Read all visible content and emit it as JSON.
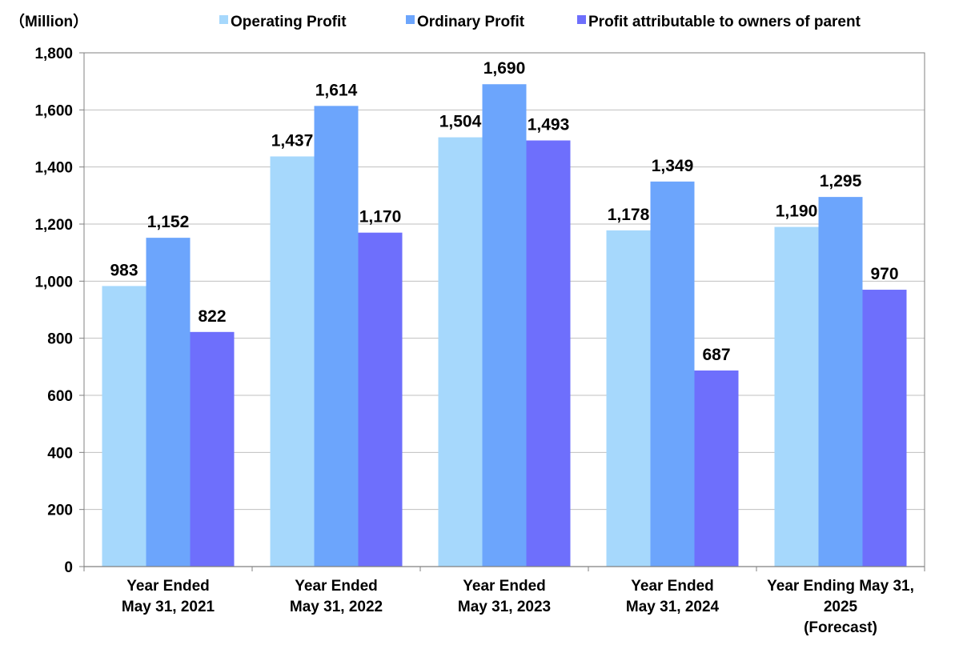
{
  "chart_data": {
    "type": "bar",
    "unit_label": "（Million）",
    "categories": [
      [
        "Year Ended",
        "May 31, 2021"
      ],
      [
        "Year Ended",
        "May 31, 2022"
      ],
      [
        "Year Ended",
        "May 31, 2023"
      ],
      [
        "Year Ended",
        "May 31, 2024"
      ],
      [
        "Year Ending May 31,",
        "2025",
        "(Forecast)"
      ]
    ],
    "series": [
      {
        "name": "Operating Profit",
        "color": "#a6d8fc",
        "values": [
          983,
          1437,
          1504,
          1178,
          1190
        ],
        "labels": [
          "983",
          "1,437",
          "1,504",
          "1,178",
          "1,190"
        ]
      },
      {
        "name": "Ordinary Profit",
        "color": "#6ca5fc",
        "values": [
          1152,
          1614,
          1690,
          1349,
          1295
        ],
        "labels": [
          "1,152",
          "1,614",
          "1,690",
          "1,349",
          "1,295"
        ]
      },
      {
        "name": "Profit attributable to owners of parent",
        "color": "#6e6ffc",
        "values": [
          822,
          1170,
          1493,
          687,
          970
        ],
        "labels": [
          "822",
          "1,170",
          "1,493",
          "687",
          "970"
        ]
      }
    ],
    "ylim": [
      0,
      1800
    ],
    "yticks": [
      0,
      200,
      400,
      600,
      800,
      1000,
      1200,
      1400,
      1600,
      1800
    ],
    "ytick_labels": [
      "0",
      "200",
      "400",
      "600",
      "800",
      "1,000",
      "1,200",
      "1,400",
      "1,600",
      "1,800"
    ],
    "grid": true,
    "legend": "top"
  }
}
